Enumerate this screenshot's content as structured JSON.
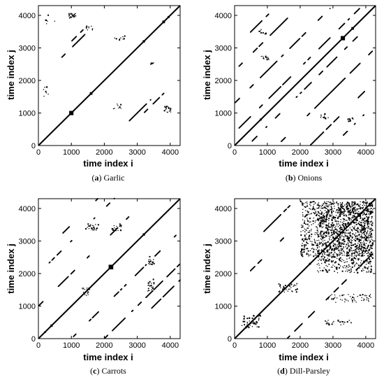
{
  "chart_data": [
    {
      "type": "heatmap",
      "caption_letter": "a",
      "caption_name": "Garlic",
      "xlabel": "time index i",
      "ylabel": "time index j",
      "xlim": [
        0,
        4300
      ],
      "ylim": [
        0,
        4300
      ],
      "xticks": [
        0,
        1000,
        2000,
        3000,
        4000
      ],
      "yticks": [
        0,
        1000,
        2000,
        3000,
        4000
      ],
      "grid": false,
      "diagonal": true,
      "blocks": [
        [
          1000,
          1000,
          130
        ],
        [
          1600,
          1600,
          80
        ],
        [
          3200,
          3200,
          70
        ],
        [
          3800,
          3800,
          80
        ],
        [
          3950,
          3950,
          60
        ]
      ],
      "clusters": [
        {
          "x": 900,
          "y": 3900,
          "w": 250,
          "h": 150,
          "p": 0.9
        },
        {
          "x": 3800,
          "y": 1000,
          "w": 200,
          "h": 200,
          "p": 0.8
        },
        {
          "x": 1400,
          "y": 3500,
          "w": 300,
          "h": 150,
          "p": 0.3
        },
        {
          "x": 2300,
          "y": 3200,
          "w": 300,
          "h": 150,
          "p": 0.3
        },
        {
          "x": 3300,
          "y": 2400,
          "w": 200,
          "h": 150,
          "p": 0.3
        },
        {
          "x": 2200,
          "y": 1100,
          "w": 300,
          "h": 200,
          "p": 0.2
        },
        {
          "x": 200,
          "y": 3700,
          "w": 300,
          "h": 300,
          "p": 0.1
        },
        {
          "x": 100,
          "y": 1500,
          "w": 200,
          "h": 300,
          "p": 0.2
        }
      ],
      "segments": [
        {
          "x": 600,
          "y": 2600,
          "len": 800,
          "p": 0.5
        },
        {
          "x": 2600,
          "y": 600,
          "len": 800,
          "p": 0.5
        },
        {
          "x": 1000,
          "y": 3200,
          "len": 600,
          "p": 0.3
        },
        {
          "x": 3200,
          "y": 1000,
          "len": 600,
          "p": 0.3
        }
      ]
    },
    {
      "type": "heatmap",
      "caption_letter": "b",
      "caption_name": "Onions",
      "xlabel": "time index i",
      "ylabel": "time index j",
      "xlim": [
        0,
        4300
      ],
      "ylim": [
        0,
        4300
      ],
      "xticks": [
        0,
        1000,
        2000,
        3000,
        4000
      ],
      "yticks": [
        0,
        1000,
        2000,
        3000,
        4000
      ],
      "grid": false,
      "diagonal": true,
      "blocks": [
        [
          3300,
          3300,
          130
        ],
        [
          3600,
          3600,
          80
        ],
        [
          800,
          800,
          60
        ]
      ],
      "clusters": [
        {
          "x": 2600,
          "y": 800,
          "w": 250,
          "h": 150,
          "p": 0.5
        },
        {
          "x": 800,
          "y": 2600,
          "w": 250,
          "h": 150,
          "p": 0.5
        },
        {
          "x": 3400,
          "y": 700,
          "w": 250,
          "h": 150,
          "p": 0.4
        },
        {
          "x": 700,
          "y": 3400,
          "w": 250,
          "h": 150,
          "p": 0.4
        }
      ],
      "segments": [
        {
          "x": 0,
          "y": 400,
          "len": 3800,
          "p": 0.35
        },
        {
          "x": 400,
          "y": 0,
          "len": 3800,
          "p": 0.35
        },
        {
          "x": 0,
          "y": 1300,
          "len": 2900,
          "p": 0.3
        },
        {
          "x": 1300,
          "y": 0,
          "len": 2900,
          "p": 0.3
        },
        {
          "x": 0,
          "y": 2300,
          "len": 1900,
          "p": 0.3
        },
        {
          "x": 2300,
          "y": 0,
          "len": 1900,
          "p": 0.3
        },
        {
          "x": 300,
          "y": 3300,
          "len": 900,
          "p": 0.3
        },
        {
          "x": 3300,
          "y": 300,
          "len": 900,
          "p": 0.3
        }
      ]
    },
    {
      "type": "heatmap",
      "caption_letter": "c",
      "caption_name": "Carrots",
      "xlabel": "time index i",
      "ylabel": "time index j",
      "xlim": [
        0,
        4300
      ],
      "ylim": [
        0,
        4300
      ],
      "xticks": [
        0,
        1000,
        2000,
        3000,
        4000
      ],
      "yticks": [
        0,
        1000,
        2000,
        3000,
        4000
      ],
      "grid": false,
      "diagonal": true,
      "blocks": [
        [
          2200,
          2200,
          140
        ],
        [
          3200,
          3200,
          70
        ],
        [
          400,
          400,
          70
        ],
        [
          200,
          200,
          50
        ]
      ],
      "clusters": [
        {
          "x": 1400,
          "y": 3300,
          "w": 400,
          "h": 200,
          "p": 0.5
        },
        {
          "x": 3300,
          "y": 1400,
          "w": 200,
          "h": 400,
          "p": 0.5
        },
        {
          "x": 2200,
          "y": 3300,
          "w": 300,
          "h": 200,
          "p": 0.5
        },
        {
          "x": 3300,
          "y": 2200,
          "w": 200,
          "h": 300,
          "p": 0.5
        },
        {
          "x": 1300,
          "y": 1300,
          "w": 250,
          "h": 250,
          "p": 0.35
        }
      ],
      "segments": [
        {
          "x": 0,
          "y": 1000,
          "len": 3300,
          "p": 0.3
        },
        {
          "x": 1000,
          "y": 0,
          "len": 3300,
          "p": 0.3
        },
        {
          "x": 0,
          "y": 2000,
          "len": 2300,
          "p": 0.3
        },
        {
          "x": 2000,
          "y": 0,
          "len": 2300,
          "p": 0.3
        },
        {
          "x": 500,
          "y": 3000,
          "len": 1300,
          "p": 0.3
        },
        {
          "x": 3000,
          "y": 500,
          "len": 1300,
          "p": 0.3
        }
      ]
    },
    {
      "type": "heatmap",
      "caption_letter": "d",
      "caption_name": "Dill-Parsley",
      "xlabel": "time index i",
      "ylabel": "time index j",
      "xlim": [
        0,
        4300
      ],
      "ylim": [
        0,
        4300
      ],
      "xticks": [
        0,
        1000,
        2000,
        3000,
        4000
      ],
      "yticks": [
        0,
        1000,
        2000,
        3000,
        4000
      ],
      "grid": false,
      "diagonal": true,
      "blocks": [
        [
          3800,
          3800,
          110
        ],
        [
          2300,
          2300,
          60
        ],
        [
          400,
          400,
          70
        ]
      ],
      "clusters": [
        {
          "x": 2000,
          "y": 2500,
          "w": 2200,
          "h": 1700,
          "p": 0.35
        },
        {
          "x": 2500,
          "y": 2000,
          "w": 1700,
          "h": 2200,
          "p": 0.3
        },
        {
          "x": 1300,
          "y": 1400,
          "w": 600,
          "h": 300,
          "p": 0.3
        },
        {
          "x": 200,
          "y": 300,
          "w": 600,
          "h": 400,
          "p": 0.3
        },
        {
          "x": 2800,
          "y": 1100,
          "w": 1400,
          "h": 250,
          "p": 0.25
        },
        {
          "x": 2700,
          "y": 400,
          "w": 900,
          "h": 150,
          "p": 0.3
        }
      ],
      "segments": [
        {
          "x": 0,
          "y": 1600,
          "len": 2600,
          "p": 0.25
        },
        {
          "x": 1600,
          "y": 0,
          "len": 2600,
          "p": 0.25
        },
        {
          "x": 600,
          "y": 3000,
          "len": 1200,
          "p": 0.3
        }
      ]
    }
  ]
}
